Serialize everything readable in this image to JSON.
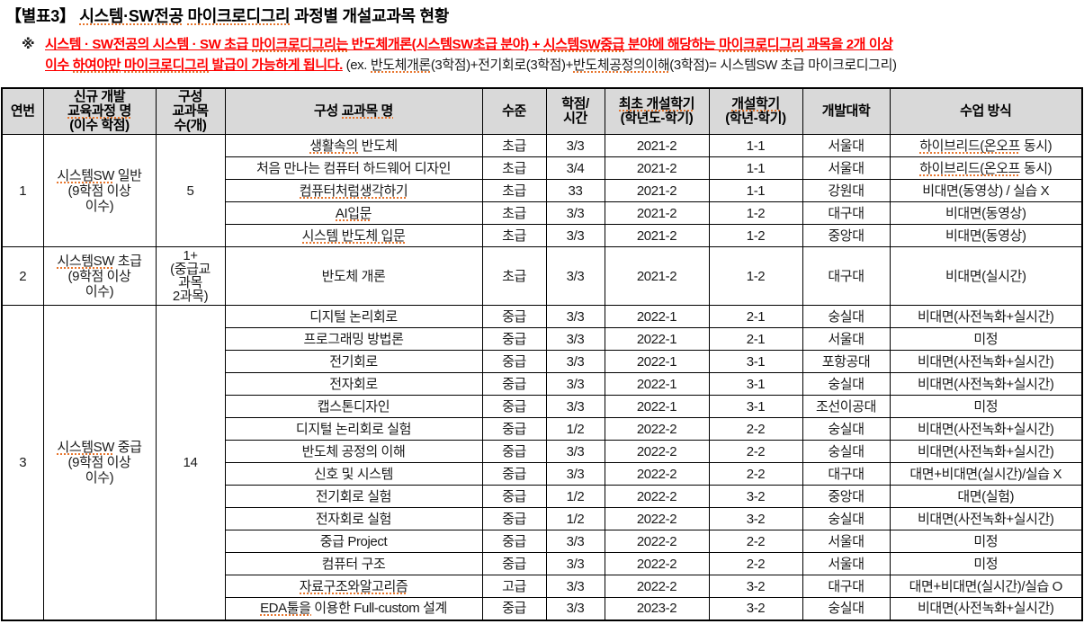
{
  "title_parts": [
    {
      "t": "【별표3】 "
    },
    {
      "t": "시스템·SW전공",
      "sq": true
    },
    {
      "t": " "
    },
    {
      "t": "마이크로디그리",
      "sq": true
    },
    {
      "t": " 과정별 개설교과목 현황"
    }
  ],
  "note": {
    "marker": "※",
    "line1": [
      {
        "t": "시스템 · SW전공의 시스템 · SW 초급 ",
        "red": true
      },
      {
        "t": "마이크로디그리는",
        "red": true,
        "sq": true
      },
      {
        "t": " 반도체개론(시스템SW초급 분야) + ",
        "red": true
      },
      {
        "t": "시스템SW중급",
        "red": true,
        "sq": true
      },
      {
        "t": " 분야에 해당하는 ",
        "red": true
      },
      {
        "t": "마이크로디그리",
        "red": true,
        "sq": true
      },
      {
        "t": " 과목을 2개 이상",
        "red": true
      }
    ],
    "line2": [
      {
        "t": "이수 ",
        "red": true
      },
      {
        "t": "하여야만",
        "red": true,
        "sq": true
      },
      {
        "t": " ",
        "red": true
      },
      {
        "t": "마이크로디그리",
        "red": true,
        "sq": true
      },
      {
        "t": " 발급이 가능하게 됩니다.",
        "red": true
      },
      {
        "t": " (ex. "
      },
      {
        "t": "반도체개론",
        "sq": true
      },
      {
        "t": "(3학점)+전기회로(3학점)+"
      },
      {
        "t": "반도체공정의이해",
        "sq": true
      },
      {
        "t": "(3학점)= 시스템SW 초급 마이크로디그리)"
      }
    ]
  },
  "table": {
    "headers": [
      "연번",
      [
        {
          "t": "신규 개발\n"
        },
        {
          "t": "교육과정 명",
          "sq": true
        },
        {
          "t": "\n(이수 학점)"
        }
      ],
      "구성\n교과목\n수(개)",
      [
        {
          "t": "구성 "
        },
        {
          "t": "교과목 명",
          "sq": true
        }
      ],
      "수준",
      "학점/\n시간",
      [
        {
          "t": "최초 개설학기",
          "sq": true
        },
        {
          "t": "\n(학년도-학기)"
        }
      ],
      [
        {
          "t": "개설학기",
          "sq": true
        },
        {
          "t": "\n(학년-학기)"
        }
      ],
      "개발대학",
      "수업 방식"
    ],
    "sections": [
      {
        "no": "1",
        "program": [
          {
            "t": "시스템SW",
            "sq": true
          },
          {
            "t": " 일반\n(9학점 이상\n이수)"
          }
        ],
        "count": "5",
        "courses": [
          [
            [
              {
                "t": "생활속의",
                "sq": true
              },
              {
                "t": " 반도체"
              }
            ],
            "초급",
            "3/3",
            "2021-2",
            "1-1",
            "서울대",
            [
              {
                "t": "하이브리드(온오프",
                "sq": true
              },
              {
                "t": " 동시)"
              }
            ]
          ],
          [
            "처음 만나는 컴퓨터 하드웨어 디자인",
            "초급",
            "3/4",
            "2021-2",
            "1-1",
            "서울대",
            [
              {
                "t": "하이브리드(온오프",
                "sq": true
              },
              {
                "t": " 동시)"
              }
            ]
          ],
          [
            [
              {
                "t": "컴퓨터처럼생각하기",
                "sq": true
              }
            ],
            "초급",
            "33",
            "2021-2",
            "1-1",
            "강원대",
            "비대면(동영상) / 실습 X"
          ],
          [
            [
              {
                "t": "AI입문",
                "sq": true
              }
            ],
            "초급",
            "3/3",
            "2021-2",
            "1-2",
            "대구대",
            "비대면(동영상)"
          ],
          [
            [
              {
                "t": "시스템 반도체 입문",
                "sq": true
              }
            ],
            "초급",
            "3/3",
            "2021-2",
            "1-2",
            "중앙대",
            "비대면(동영상)"
          ]
        ]
      },
      {
        "no": "2",
        "program": [
          {
            "t": "시스템SW",
            "sq": true
          },
          {
            "t": " 초급\n(9학점 이상\n이수)"
          }
        ],
        "count": "1+\n(중급교\n과목\n2과목)",
        "courses": [
          [
            "반도체 개론",
            "초급",
            "3/3",
            "2021-2",
            "1-2",
            "대구대",
            "비대면(실시간)"
          ]
        ]
      },
      {
        "no": "3",
        "program": [
          {
            "t": "시스템SW",
            "sq": true
          },
          {
            "t": " 중급\n(9학점 이상\n이수)"
          }
        ],
        "count": "14",
        "courses": [
          [
            "디지털 논리회로",
            "중급",
            "3/3",
            "2022-1",
            "2-1",
            "숭실대",
            "비대면(사전녹화+실시간)"
          ],
          [
            "프로그래밍 방법론",
            "중급",
            "3/3",
            "2022-1",
            "2-1",
            "서울대",
            "미정"
          ],
          [
            "전기회로",
            "중급",
            "3/3",
            "2022-1",
            "3-1",
            "포항공대",
            "비대면(사전녹화+실시간)"
          ],
          [
            "전자회로",
            "중급",
            "3/3",
            "2022-1",
            "3-1",
            "숭실대",
            "비대면(사전녹화+실시간)"
          ],
          [
            "캡스톤디자인",
            "중급",
            "3/3",
            "2022-1",
            "3-1",
            "조선이공대",
            "미정"
          ],
          [
            "디지털 논리회로 실험",
            "중급",
            "1/2",
            "2022-2",
            "2-2",
            "숭실대",
            "비대면(사전녹화+실시간)"
          ],
          [
            "반도체 공정의 이해",
            "중급",
            "3/3",
            "2022-2",
            "2-2",
            "숭실대",
            "비대면(사전녹화+실시간)"
          ],
          [
            "신호 및 시스템",
            "중급",
            "3/3",
            "2022-2",
            "2-2",
            "대구대",
            "대면+비대면(실시간)/실습 X"
          ],
          [
            "전기회로 실험",
            "중급",
            "1/2",
            "2022-2",
            "3-2",
            "중앙대",
            "대면(실험)"
          ],
          [
            "전자회로 실험",
            "중급",
            "1/2",
            "2022-2",
            "3-2",
            "숭실대",
            "비대면(사전녹화+실시간)"
          ],
          [
            "중급 Project",
            "중급",
            "3/3",
            "2022-2",
            "2-2",
            "서울대",
            "미정"
          ],
          [
            "컴퓨터 구조",
            "중급",
            "3/3",
            "2022-2",
            "2-2",
            "서울대",
            "미정"
          ],
          [
            [
              {
                "t": "자료구조와알고리즘",
                "sq": true
              }
            ],
            "고급",
            "3/3",
            "2022-2",
            "3-2",
            "대구대",
            "대면+비대면(실시간)/실습 O"
          ],
          [
            [
              {
                "t": "EDA툴을",
                "sq": true
              },
              {
                "t": " 이용한 Full-custom 설계"
              }
            ],
            "중급",
            "3/3",
            "2023-2",
            "3-2",
            "숭실대",
            "비대면(사전녹화+실시간)"
          ]
        ]
      }
    ]
  },
  "colors": {
    "note_red": "#ff0000",
    "spellcheck_orange": "#e8762d",
    "header_background": "#d9d9d9",
    "border_black": "#000000"
  }
}
